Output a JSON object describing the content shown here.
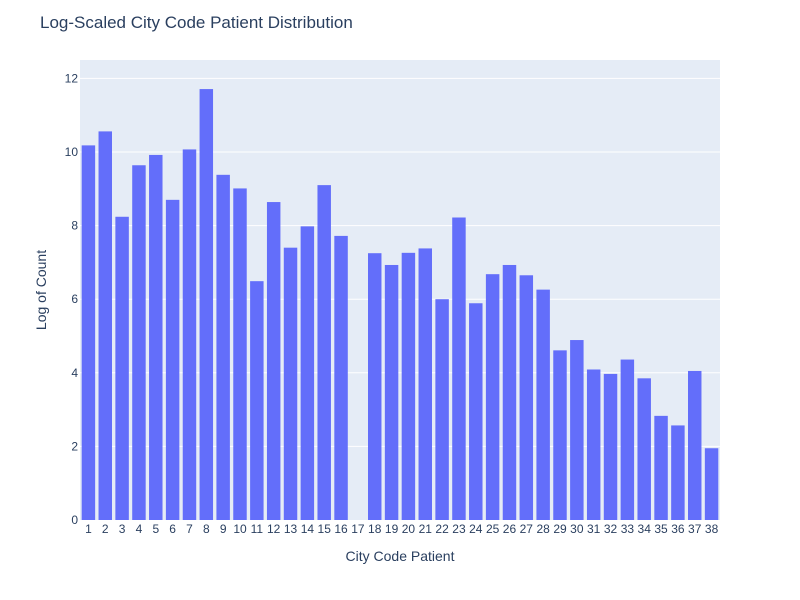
{
  "chart_data": {
    "type": "bar",
    "title": "Log-Scaled City Code Patient Distribution",
    "xlabel": "City Code Patient",
    "ylabel": "Log of Count",
    "ylim": [
      0,
      12.5
    ],
    "yticks": [
      0,
      2,
      4,
      6,
      8,
      10,
      12
    ],
    "grid": true,
    "bar_color": "#636efa",
    "plot_bg": "#e5ecf6",
    "categories": [
      "1",
      "2",
      "3",
      "4",
      "5",
      "6",
      "7",
      "8",
      "9",
      "10",
      "11",
      "12",
      "13",
      "14",
      "15",
      "16",
      "17",
      "18",
      "19",
      "20",
      "21",
      "22",
      "23",
      "24",
      "25",
      "26",
      "27",
      "28",
      "29",
      "30",
      "31",
      "32",
      "33",
      "34",
      "35",
      "36",
      "37",
      "38"
    ],
    "values": [
      10.18,
      10.56,
      8.24,
      9.64,
      9.92,
      8.7,
      10.07,
      11.71,
      9.38,
      9.01,
      6.49,
      8.64,
      7.4,
      7.98,
      9.1,
      7.72,
      0,
      7.25,
      6.93,
      7.26,
      7.38,
      6.0,
      8.22,
      5.89,
      6.68,
      6.93,
      6.65,
      6.26,
      4.61,
      4.89,
      4.09,
      3.97,
      4.36,
      3.85,
      2.83,
      2.57,
      4.05,
      1.95
    ]
  }
}
